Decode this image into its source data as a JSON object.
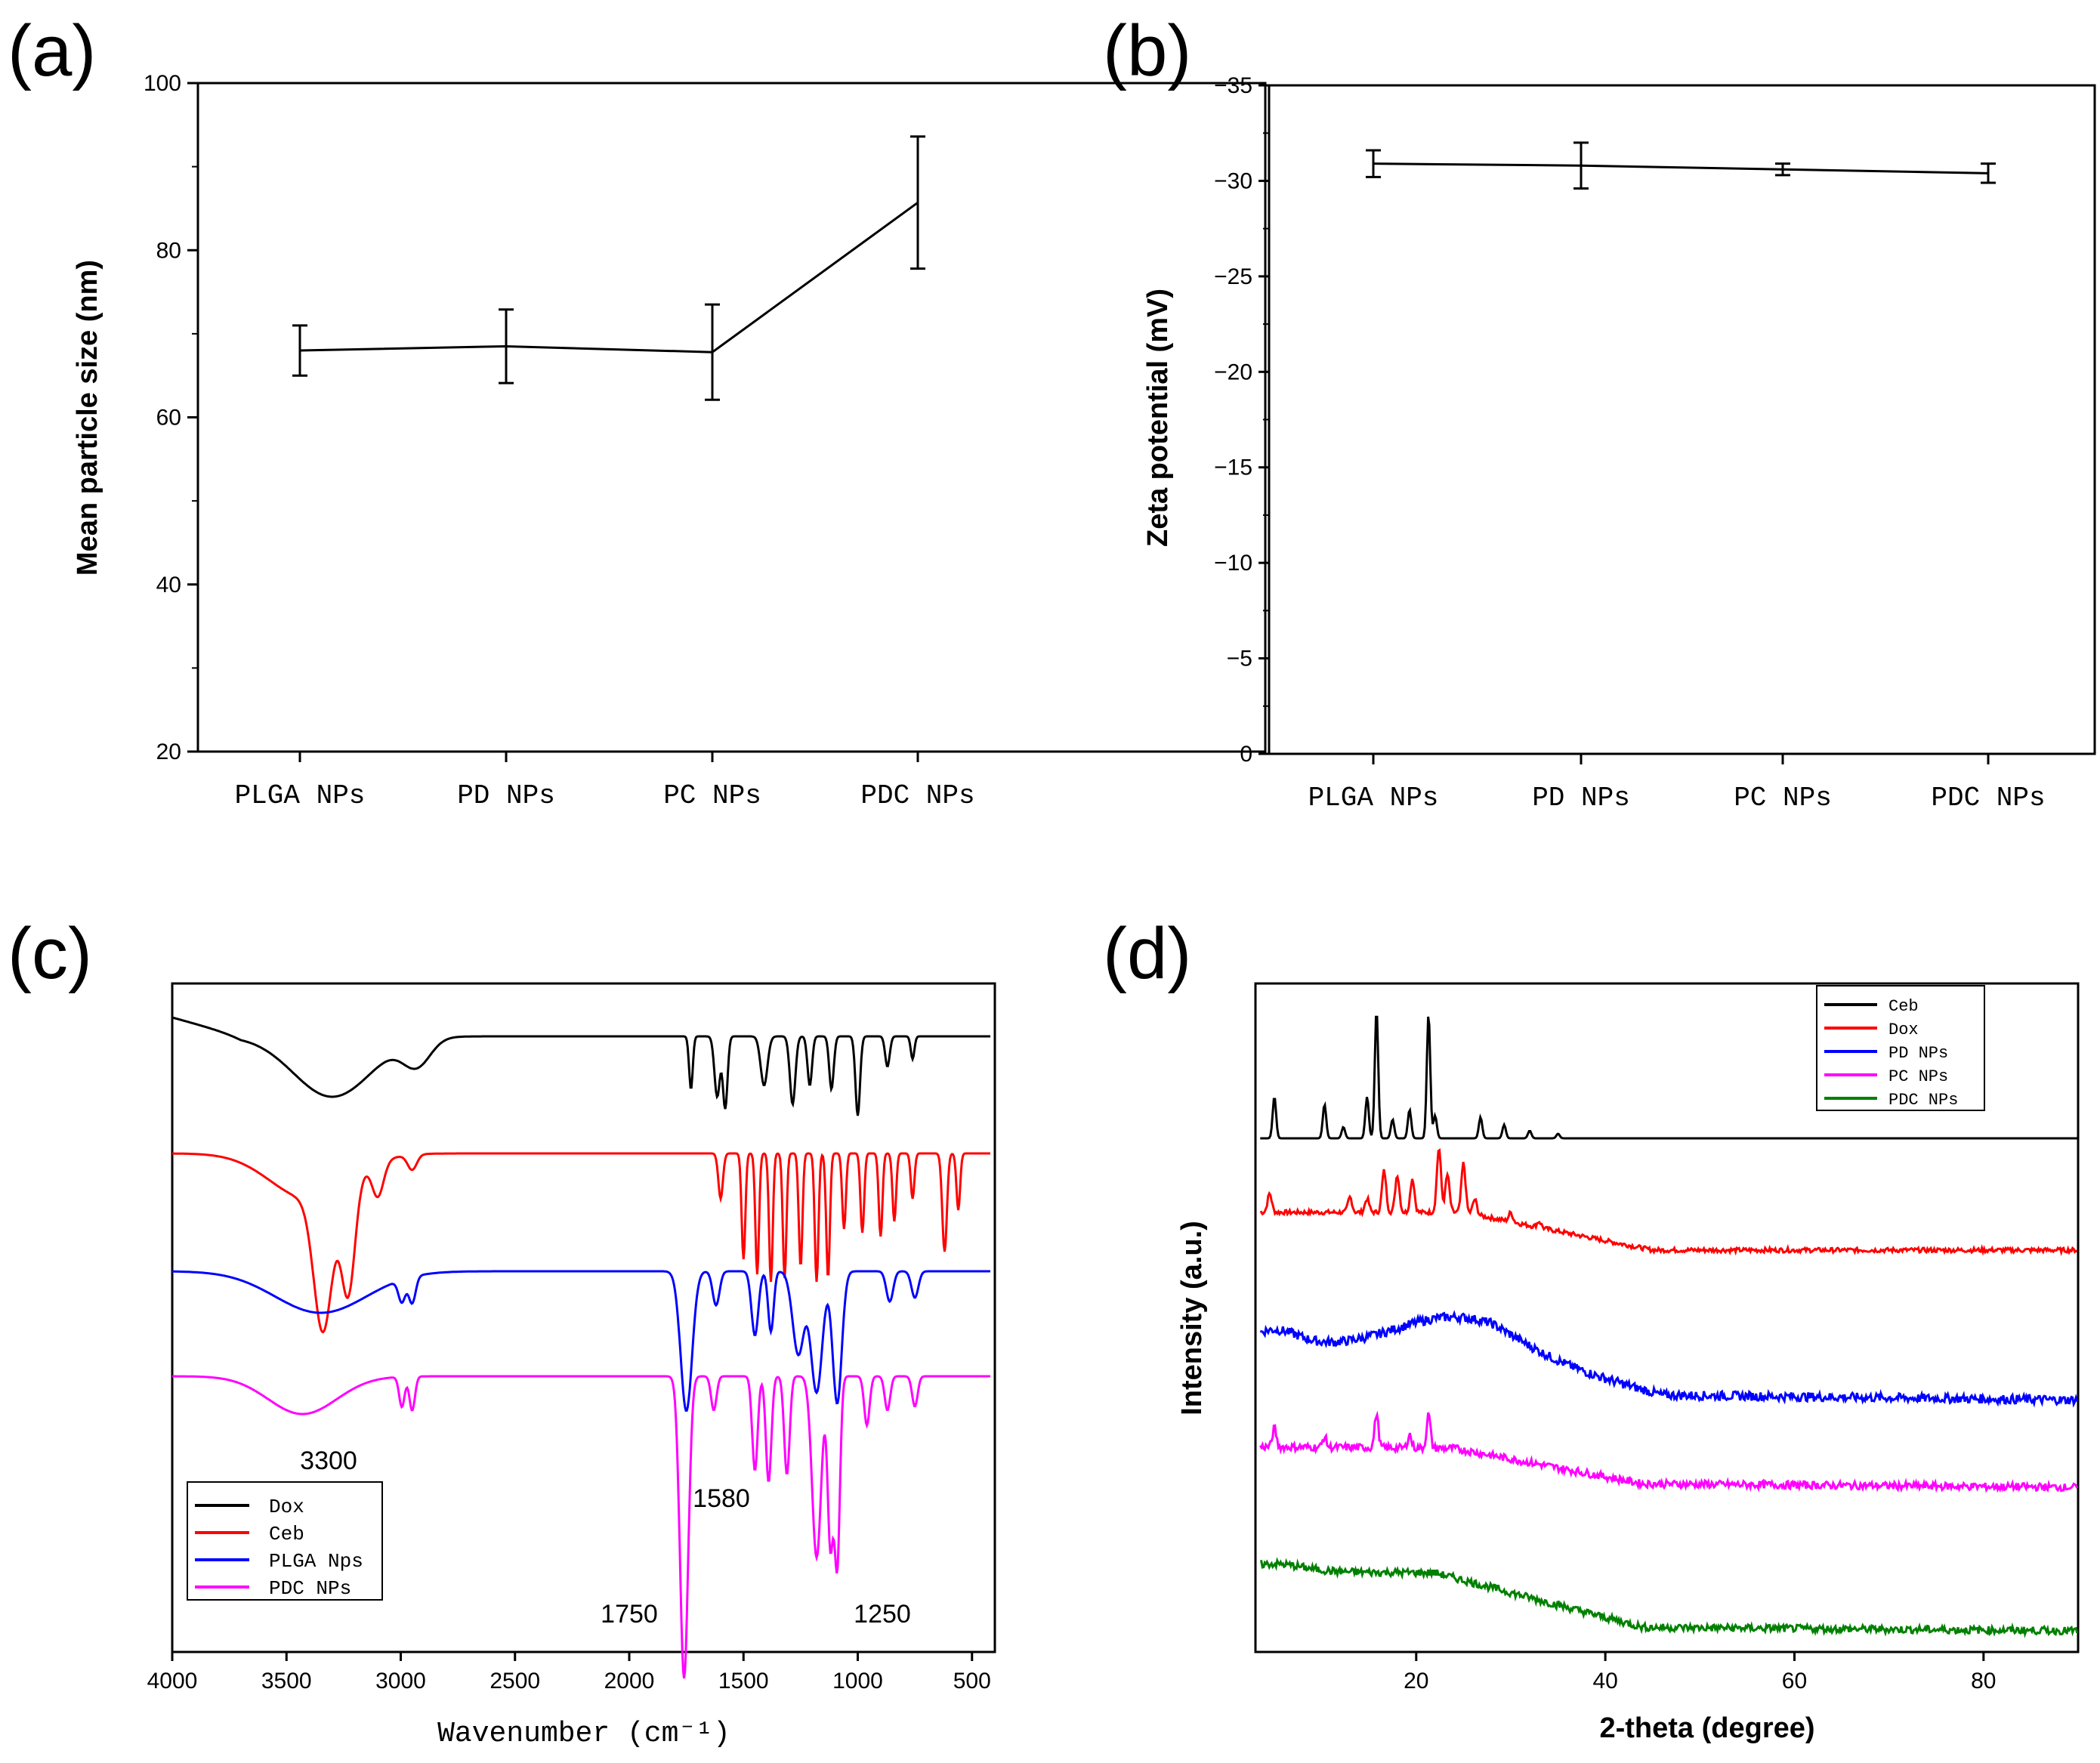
{
  "chart_data": [
    {
      "panel": "(a)",
      "type": "line",
      "categories": [
        "PLGA NPs",
        "PD NPs",
        "PC NPs",
        "PDC NPs"
      ],
      "values": [
        68.0,
        68.5,
        67.8,
        85.7
      ],
      "errors": [
        3.0,
        4.4,
        5.7,
        7.9
      ],
      "xlabel": "",
      "ylabel": "Mean particle size (nm)",
      "ylim": [
        20,
        100
      ],
      "yticks": [
        "20",
        "40",
        "60",
        "80",
        "100"
      ],
      "color": "#000000"
    },
    {
      "panel": "(b)",
      "type": "line",
      "categories": [
        "PLGA NPs",
        "PD NPs",
        "PC NPs",
        "PDC NPs"
      ],
      "values": [
        -30.9,
        -30.8,
        -30.6,
        -30.4
      ],
      "errors": [
        0.7,
        1.2,
        0.3,
        0.5
      ],
      "xlabel": "",
      "ylabel": "Zeta potential (mV)",
      "ylim": [
        0,
        -35
      ],
      "yticks": [
        "0",
        "−5",
        "−10",
        "−15",
        "−20",
        "−25",
        "−30",
        "−35"
      ],
      "color": "#000000"
    },
    {
      "panel": "(c)",
      "type": "line",
      "title": "",
      "xlabel": "Wavenumber (cm⁻¹)",
      "ylabel": "",
      "xlim": [
        4000,
        400
      ],
      "xticks": [
        "4000",
        "3500",
        "3000",
        "2500",
        "2000",
        "1500",
        "1000",
        "500"
      ],
      "annotations": [
        "3300",
        "1580",
        "1750",
        "1250"
      ],
      "series": [
        {
          "name": "Dox",
          "color": "#000000"
        },
        {
          "name": "Ceb",
          "color": "#ff0000"
        },
        {
          "name": "PLGA Nps",
          "color": "#0000ff"
        },
        {
          "name": "PDC NPs",
          "color": "#ff00ff"
        }
      ]
    },
    {
      "panel": "(d)",
      "type": "line",
      "xlabel": "2-theta (degree)",
      "ylabel": "Intensity (a.u.)",
      "xlim": [
        3,
        90
      ],
      "xticks": [
        "20",
        "40",
        "60",
        "80"
      ],
      "series": [
        {
          "name": "Ceb",
          "color": "#000000"
        },
        {
          "name": "Dox",
          "color": "#ff0000"
        },
        {
          "name": "PD NPs",
          "color": "#0000ff"
        },
        {
          "name": "PC NPs",
          "color": "#ff00ff"
        },
        {
          "name": "PDC NPs",
          "color": "#008000"
        }
      ]
    }
  ]
}
